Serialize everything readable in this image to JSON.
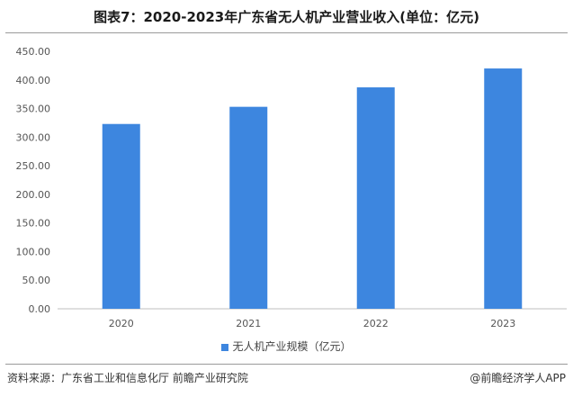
{
  "title": "图表7：2020-2023年广东省无人机产业营业收入(单位：亿元)",
  "footer": {
    "source": "资料来源：广东省工业和信息化厅 前瞻产业研究院",
    "credit": "@前瞻经济学人APP"
  },
  "colors": {
    "bar": "#3d86df",
    "grid": "#d9d9d9",
    "axis_text": "#555555"
  },
  "chart_data": {
    "type": "bar",
    "title": "图表7：2020-2023年广东省无人机产业营业收入(单位：亿元)",
    "xlabel": "",
    "ylabel": "",
    "categories": [
      "2020",
      "2021",
      "2022",
      "2023"
    ],
    "y_ticks": [
      "0.00",
      "50.00",
      "100.00",
      "150.00",
      "200.00",
      "250.00",
      "300.00",
      "350.00",
      "400.00",
      "450.00"
    ],
    "ylim": [
      0,
      450
    ],
    "grid": false,
    "legend_position": "bottom",
    "series": [
      {
        "name": "无人机产业规模（亿元）",
        "values": [
          323,
          353,
          387,
          420
        ]
      }
    ]
  }
}
